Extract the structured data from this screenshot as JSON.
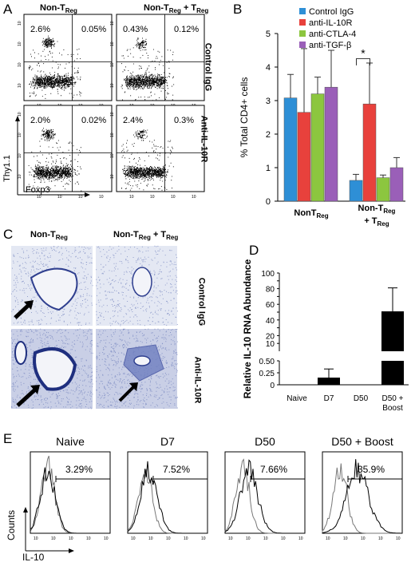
{
  "panelA": {
    "label": "A",
    "col1": "Non-T",
    "col1_sub": "Reg",
    "col2a": "Non-T",
    "col2a_sub": "Reg",
    "col2b": " + T",
    "col2b_sub": "Reg",
    "row1": "Control IgG",
    "row2": "Anti-IL-10R",
    "y_axis": "Thy1.1",
    "x_axis": "Foxp3",
    "quadrants": [
      {
        "left": "2.6%",
        "right": "0.05%"
      },
      {
        "left": "0.43%",
        "right": "0.12%"
      },
      {
        "left": "2.0%",
        "right": "0.02%"
      },
      {
        "left": "2.4%",
        "right": "0.3%"
      }
    ]
  },
  "panelB": {
    "label": "B",
    "ylabel": "% Total CD4+ cells",
    "star": "*",
    "chart_data": {
      "type": "bar",
      "categories": [
        "NonTReg",
        "Non-TReg + TReg"
      ],
      "series": [
        {
          "name": "Control IgG",
          "color": "#2e8fd6",
          "values": [
            3.08,
            0.62
          ],
          "errors": [
            0.7,
            0.18
          ]
        },
        {
          "name": "anti-IL-10R",
          "color": "#e8413c",
          "values": [
            2.65,
            2.9
          ],
          "errors": [
            1.9,
            1.22
          ]
        },
        {
          "name": "anti-CTLA-4",
          "color": "#8cc63f",
          "values": [
            3.2,
            0.7
          ],
          "errors": [
            0.5,
            0.08
          ]
        },
        {
          "name": "anti-TGF-β",
          "color": "#9a5fb8",
          "values": [
            3.4,
            1.0
          ],
          "errors": [
            1.1,
            0.3
          ]
        }
      ],
      "ylim": [
        0,
        5
      ],
      "yticks": [
        "0",
        "1",
        "2",
        "3",
        "4",
        "5"
      ],
      "xlabels": [
        {
          "main": "NonT",
          "sub": "Reg"
        },
        {
          "main": "Non-T",
          "sub": "Reg",
          "main2": "+ T",
          "sub2": "Reg"
        }
      ]
    }
  },
  "panelC": {
    "label": "C",
    "col1": "Non-T",
    "col1_sub": "Reg",
    "col2a": "Non-T",
    "col2a_sub": "Reg",
    "col2b": " + T",
    "col2b_sub": "Reg",
    "row1": "Control IgG",
    "row2": "Anti-IL-10R"
  },
  "panelD": {
    "label": "D",
    "ylabel": "Relative IL-10 RNA Abundance",
    "chart_data": {
      "type": "bar",
      "categories": [
        "Naive",
        "D7",
        "D50",
        "D50 + Boost"
      ],
      "values": [
        0.0,
        0.15,
        0.005,
        51
      ],
      "errors": [
        0,
        0.18,
        0,
        30
      ],
      "broken_axis": true,
      "lower_range": [
        0,
        0.5
      ],
      "upper_range": [
        0,
        100
      ],
      "lower_ticks": [
        "0",
        "0.25",
        "0.50"
      ],
      "upper_ticks": [
        "10",
        "20",
        "30",
        "40",
        "50",
        "60",
        "70",
        "80",
        "90",
        "100"
      ]
    }
  },
  "panelE": {
    "label": "E",
    "titles": [
      "Naive",
      "D7",
      "D50",
      "D50 + Boost"
    ],
    "percents": [
      "3.29%",
      "7.52%",
      "7.66%",
      "35.9%"
    ],
    "ylabel": "Counts",
    "xlabel": "IL-10"
  }
}
